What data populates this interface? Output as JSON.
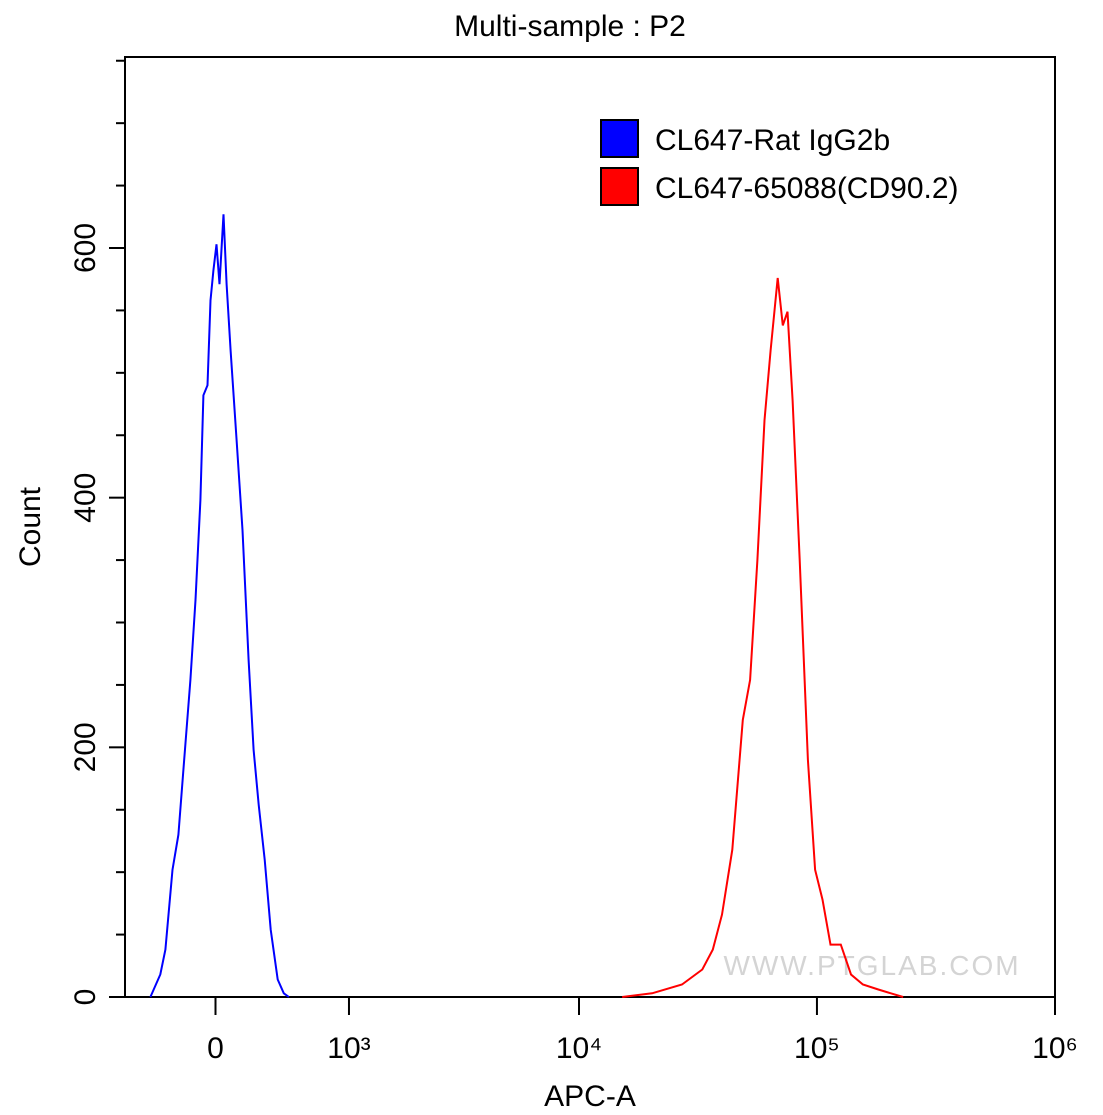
{
  "chart_data": {
    "type": "line",
    "title": "Multi-sample : P2",
    "xlabel": "APC-A",
    "ylabel": "Count",
    "xscale": "biexponential",
    "xlim": [
      -590,
      1000000
    ],
    "ylim": [
      0,
      753
    ],
    "xticks": [
      0,
      {
        "value": 1000,
        "label": "10³"
      },
      {
        "value": 10000,
        "label": "10⁴"
      },
      {
        "value": 100000,
        "label": "10⁵"
      },
      {
        "value": 1000000,
        "label": "10⁶"
      }
    ],
    "yticks": [
      0,
      200,
      400,
      600
    ],
    "yminor_ticks": [
      50,
      100,
      150,
      250,
      300,
      350,
      450,
      500,
      550,
      650,
      700,
      750
    ],
    "legend": "upper right",
    "watermark": "WWW.PTGLAB.COM",
    "series": [
      {
        "name": "CL647-Rat IgG2b",
        "color": "#0000ff",
        "x": [
          -400,
          -333,
          -300,
          -255,
          -218,
          -188,
          -146,
          -116,
          -87,
          -70,
          -46,
          -29,
          -12,
          6,
          23,
          46,
          64,
          87,
          122,
          157,
          194,
          224,
          256,
          294,
          333,
          380,
          422,
          459
        ],
        "values": [
          0,
          18,
          38,
          102,
          130,
          182,
          254,
          318,
          398,
          482,
          490,
          558,
          582,
          603,
          571,
          627,
          571,
          518,
          446,
          374,
          270,
          198,
          154,
          110,
          54,
          14,
          3,
          0
        ]
      },
      {
        "name": "CL647-65088(CD90.2)",
        "color": "#ff0000",
        "x": [
          15200,
          20300,
          27100,
          33000,
          36500,
          39900,
          44100,
          48800,
          52400,
          56200,
          60200,
          63900,
          68400,
          71900,
          75200,
          79000,
          84600,
          91600,
          98200,
          105500,
          114000,
          126000,
          139000,
          156000,
          181000,
          230000
        ],
        "values": [
          0,
          3,
          10,
          22,
          38,
          66,
          118,
          222,
          254,
          350,
          462,
          518,
          576,
          538,
          549,
          478,
          350,
          190,
          102,
          78,
          42,
          42,
          18,
          10,
          6,
          0
        ]
      }
    ]
  }
}
